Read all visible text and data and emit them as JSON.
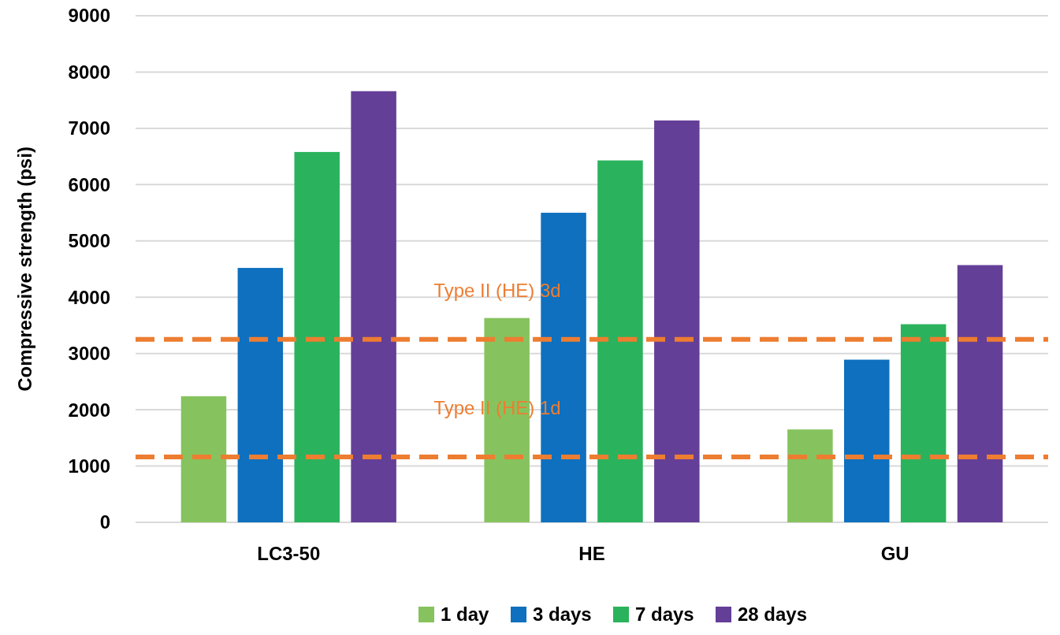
{
  "chart_data": {
    "type": "bar",
    "ylabel": "Compressive strength (psi)",
    "categories": [
      "LC3-50",
      "HE",
      "GU"
    ],
    "series": [
      {
        "name": "1 day",
        "color": "#86c35e",
        "values": [
          2240,
          3630,
          1650
        ]
      },
      {
        "name": "3 days",
        "color": "#0e70be",
        "values": [
          4520,
          5500,
          2890
        ]
      },
      {
        "name": "7 days",
        "color": "#2ab35c",
        "values": [
          6580,
          6430,
          3520
        ]
      },
      {
        "name": "28 days",
        "color": "#643f97",
        "values": [
          7660,
          7140,
          4570
        ]
      }
    ],
    "ylim": [
      0,
      9000
    ],
    "yticks": [
      0,
      1000,
      2000,
      3000,
      4000,
      5000,
      6000,
      7000,
      8000,
      9000
    ],
    "grid": "y",
    "legend": "bottom",
    "ref_lines": [
      {
        "axis": "y",
        "value": 3250,
        "label": "Type II (HE) 3d",
        "color": "#ed7d31",
        "line_style": "dashed"
      },
      {
        "axis": "y",
        "value": 1160,
        "label": "Type II (HE) 1d",
        "color": "#ed7d31",
        "line_style": "dashed"
      }
    ]
  }
}
